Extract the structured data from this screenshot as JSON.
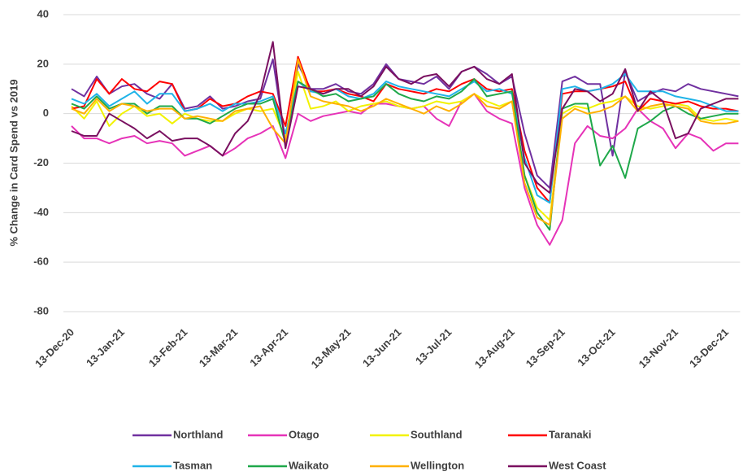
{
  "chart_data": {
    "type": "line",
    "y_label": "% Change in Card Spend vs 2019",
    "categories": [
      "13-Dec-20",
      null,
      null,
      null,
      "13-Jan-21",
      null,
      null,
      null,
      null,
      "13-Feb-21",
      null,
      null,
      null,
      "13-Mar-21",
      null,
      null,
      null,
      "13-Apr-21",
      null,
      null,
      null,
      null,
      "13-May-21",
      null,
      null,
      null,
      "13-Jun-21",
      null,
      null,
      null,
      "13-Jul-21",
      null,
      null,
      null,
      null,
      "13-Aug-21",
      null,
      null,
      null,
      "13-Sep-21",
      null,
      null,
      null,
      "13-Oct-21",
      null,
      null,
      null,
      null,
      "13-Nov-21",
      null,
      null,
      null,
      "13-Dec-21",
      null
    ],
    "ylim": [
      -80,
      40
    ],
    "yticks": [
      -80,
      -60,
      -40,
      -20,
      0,
      20,
      40
    ],
    "grid": true,
    "series": [
      {
        "name": "Northland",
        "color": "#7030a0",
        "values": [
          10,
          7,
          15,
          8,
          11,
          12,
          8,
          6,
          12,
          2,
          3,
          7,
          2,
          3,
          5,
          6,
          22,
          -12,
          20,
          10,
          10,
          12,
          9,
          8,
          12,
          20,
          14,
          13,
          12,
          15,
          10,
          17,
          19,
          16,
          12,
          15,
          -8,
          -25,
          -30,
          13,
          15,
          12,
          12,
          -17,
          17,
          5,
          8,
          10,
          9,
          12,
          10,
          9,
          8,
          7
        ]
      },
      {
        "name": "Otago",
        "color": "#e633b8",
        "values": [
          -5,
          -10,
          -10,
          -12,
          -10,
          -9,
          -12,
          -11,
          -12,
          -17,
          -15,
          -13,
          -17,
          -14,
          -10,
          -8,
          -5,
          -18,
          0,
          -3,
          -1,
          0,
          1,
          0,
          4,
          4,
          3,
          2,
          3,
          -2,
          -5,
          5,
          8,
          1,
          -2,
          -4,
          -30,
          -45,
          -53,
          -43,
          -12,
          -5,
          -9,
          -10,
          -6,
          2,
          -3,
          -6,
          -14,
          -8,
          -10,
          -15,
          -12,
          -12
        ]
      },
      {
        "name": "Southland",
        "color": "#f2f200",
        "values": [
          3,
          -2,
          5,
          -5,
          0,
          3,
          -1,
          0,
          -4,
          0,
          -2,
          -3,
          -3,
          0,
          2,
          1,
          2,
          -10,
          17,
          2,
          3,
          5,
          1,
          3,
          4,
          5,
          3,
          2,
          3,
          5,
          4,
          5,
          8,
          5,
          3,
          5,
          -25,
          -38,
          -43,
          0,
          3,
          2,
          4,
          5,
          7,
          3,
          2,
          3,
          4,
          3,
          -2,
          -3,
          -2,
          -3
        ]
      },
      {
        "name": "Taranaki",
        "color": "#ff0000",
        "values": [
          2,
          3,
          14,
          8,
          14,
          10,
          9,
          13,
          12,
          1,
          2,
          6,
          3,
          4,
          7,
          9,
          8,
          -5,
          23,
          9,
          9,
          10,
          8,
          7,
          5,
          12,
          10,
          9,
          8,
          10,
          9,
          12,
          14,
          10,
          9,
          10,
          -15,
          -30,
          -36,
          8,
          9,
          9,
          10,
          11,
          13,
          1,
          6,
          5,
          4,
          5,
          3,
          2,
          2,
          1
        ]
      },
      {
        "name": "Tasman",
        "color": "#1fb3e8",
        "values": [
          6,
          4,
          8,
          3,
          6,
          9,
          4,
          8,
          8,
          1,
          2,
          4,
          1,
          4,
          4,
          5,
          7,
          -8,
          13,
          9,
          8,
          10,
          7,
          6,
          8,
          13,
          11,
          10,
          9,
          8,
          7,
          10,
          13,
          9,
          10,
          8,
          -18,
          -33,
          -36,
          10,
          11,
          9,
          10,
          12,
          16,
          9,
          9,
          9,
          7,
          6,
          5,
          3,
          1,
          1
        ]
      },
      {
        "name": "Waikato",
        "color": "#1fa84a",
        "values": [
          4,
          2,
          7,
          2,
          4,
          4,
          0,
          3,
          3,
          -2,
          -2,
          -4,
          -1,
          2,
          4,
          4,
          6,
          -12,
          13,
          10,
          7,
          8,
          5,
          6,
          7,
          12,
          8,
          6,
          5,
          7,
          6,
          9,
          14,
          7,
          8,
          9,
          -25,
          -40,
          -47,
          2,
          4,
          4,
          -21,
          -13,
          -26,
          -6,
          -3,
          1,
          3,
          0,
          -2,
          -1,
          0,
          0
        ]
      },
      {
        "name": "Wellington",
        "color": "#ffb000",
        "values": [
          2,
          0,
          6,
          1,
          4,
          3,
          1,
          2,
          2,
          -2,
          -1,
          -2,
          -3,
          1,
          2,
          3,
          -6,
          -12,
          22,
          7,
          5,
          4,
          3,
          1,
          3,
          6,
          4,
          2,
          0,
          3,
          1,
          4,
          8,
          3,
          2,
          5,
          -28,
          -42,
          -45,
          -2,
          2,
          0,
          1,
          3,
          7,
          1,
          3,
          4,
          3,
          2,
          -3,
          -4,
          -4,
          -3
        ]
      },
      {
        "name": "West Coast",
        "color": "#7a1060",
        "values": [
          -7,
          -9,
          -9,
          0,
          -3,
          -6,
          -10,
          -7,
          -11,
          -10,
          -10,
          -13,
          -17,
          -8,
          -3,
          8,
          29,
          -14,
          11,
          10,
          8,
          10,
          10,
          7,
          11,
          19,
          14,
          12,
          15,
          16,
          11,
          17,
          19,
          14,
          12,
          16,
          -20,
          -28,
          -32,
          2,
          10,
          9,
          5,
          8,
          18,
          1,
          9,
          5,
          -10,
          -8,
          2,
          4,
          6,
          6
        ]
      }
    ]
  }
}
